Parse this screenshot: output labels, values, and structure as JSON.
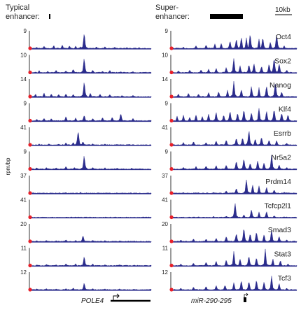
{
  "chart_data": {
    "type": "area",
    "panels": [
      {
        "title_lines": [
          "Typical",
          "enhancer:"
        ],
        "gene": "POLE4"
      },
      {
        "title_lines": [
          "Super-",
          "enhancer:"
        ],
        "gene": "miR-290-295"
      }
    ],
    "scale_bar_label": "10kb",
    "ylabel": "rpm/bp",
    "tracks": [
      {
        "name": "Oct4",
        "scales": [
          "9",
          "9"
        ],
        "left_peaks": [
          [
            0.06,
            0.12
          ],
          [
            0.12,
            0.18
          ],
          [
            0.2,
            0.22
          ],
          [
            0.27,
            0.25
          ],
          [
            0.33,
            0.2
          ],
          [
            0.38,
            0.18
          ],
          [
            0.42,
            0.15
          ],
          [
            0.45,
            0.95
          ],
          [
            0.55,
            0.15
          ],
          [
            0.62,
            0.15
          ],
          [
            0.7,
            0.12
          ],
          [
            0.8,
            0.1
          ],
          [
            0.9,
            0.1
          ]
        ],
        "right_peaks": [
          [
            0.1,
            0.12
          ],
          [
            0.2,
            0.2
          ],
          [
            0.28,
            0.25
          ],
          [
            0.35,
            0.3
          ],
          [
            0.4,
            0.35
          ],
          [
            0.47,
            0.5
          ],
          [
            0.52,
            0.6
          ],
          [
            0.56,
            0.7
          ],
          [
            0.6,
            0.65
          ],
          [
            0.63,
            0.9
          ],
          [
            0.7,
            0.55
          ],
          [
            0.73,
            0.7
          ],
          [
            0.79,
            0.45
          ],
          [
            0.84,
            0.95
          ],
          [
            0.9,
            0.2
          ]
        ]
      },
      {
        "name": "Sox2",
        "scales": [
          "10",
          "10"
        ],
        "left_peaks": [
          [
            0.08,
            0.15
          ],
          [
            0.15,
            0.12
          ],
          [
            0.22,
            0.18
          ],
          [
            0.3,
            0.15
          ],
          [
            0.36,
            0.25
          ],
          [
            0.45,
            0.9
          ],
          [
            0.52,
            0.2
          ],
          [
            0.6,
            0.12
          ],
          [
            0.66,
            0.18
          ],
          [
            0.75,
            0.1
          ],
          [
            0.85,
            0.1
          ]
        ],
        "right_peaks": [
          [
            0.06,
            0.15
          ],
          [
            0.15,
            0.18
          ],
          [
            0.24,
            0.2
          ],
          [
            0.3,
            0.25
          ],
          [
            0.36,
            0.3
          ],
          [
            0.44,
            0.35
          ],
          [
            0.5,
            0.9
          ],
          [
            0.55,
            0.45
          ],
          [
            0.62,
            0.55
          ],
          [
            0.66,
            0.6
          ],
          [
            0.72,
            0.45
          ],
          [
            0.78,
            0.55
          ],
          [
            0.82,
            0.95
          ],
          [
            0.86,
            0.6
          ],
          [
            0.92,
            0.2
          ]
        ]
      },
      {
        "name": "Nanog",
        "scales": [
          "14",
          "14"
        ],
        "left_peaks": [
          [
            0.05,
            0.2
          ],
          [
            0.12,
            0.25
          ],
          [
            0.18,
            0.2
          ],
          [
            0.24,
            0.18
          ],
          [
            0.3,
            0.22
          ],
          [
            0.36,
            0.18
          ],
          [
            0.45,
            0.92
          ],
          [
            0.5,
            0.25
          ],
          [
            0.58,
            0.2
          ],
          [
            0.66,
            0.18
          ],
          [
            0.76,
            0.12
          ],
          [
            0.85,
            0.12
          ]
        ],
        "right_peaks": [
          [
            0.06,
            0.2
          ],
          [
            0.14,
            0.25
          ],
          [
            0.22,
            0.2
          ],
          [
            0.3,
            0.3
          ],
          [
            0.38,
            0.35
          ],
          [
            0.45,
            0.4
          ],
          [
            0.5,
            0.95
          ],
          [
            0.56,
            0.5
          ],
          [
            0.64,
            0.65
          ],
          [
            0.7,
            0.55
          ],
          [
            0.76,
            0.7
          ],
          [
            0.83,
            0.92
          ],
          [
            0.88,
            0.35
          ]
        ]
      },
      {
        "name": "Klf4",
        "scales": [
          "9",
          "9"
        ],
        "left_peaks": [
          [
            0.06,
            0.15
          ],
          [
            0.12,
            0.2
          ],
          [
            0.18,
            0.18
          ],
          [
            0.3,
            0.3
          ],
          [
            0.38,
            0.22
          ],
          [
            0.45,
            0.4
          ],
          [
            0.52,
            0.2
          ],
          [
            0.6,
            0.25
          ],
          [
            0.68,
            0.25
          ],
          [
            0.75,
            0.5
          ],
          [
            0.85,
            0.2
          ]
        ],
        "right_peaks": [
          [
            0.05,
            0.3
          ],
          [
            0.1,
            0.35
          ],
          [
            0.15,
            0.25
          ],
          [
            0.2,
            0.4
          ],
          [
            0.25,
            0.3
          ],
          [
            0.3,
            0.45
          ],
          [
            0.36,
            0.55
          ],
          [
            0.42,
            0.4
          ],
          [
            0.47,
            0.65
          ],
          [
            0.53,
            0.5
          ],
          [
            0.58,
            0.7
          ],
          [
            0.64,
            0.55
          ],
          [
            0.7,
            0.8
          ],
          [
            0.76,
            0.6
          ],
          [
            0.82,
            0.75
          ],
          [
            0.88,
            0.55
          ],
          [
            0.93,
            0.4
          ]
        ]
      },
      {
        "name": "Esrrb",
        "scales": [
          "41",
          "41"
        ],
        "left_peaks": [
          [
            0.08,
            0.1
          ],
          [
            0.16,
            0.12
          ],
          [
            0.24,
            0.1
          ],
          [
            0.3,
            0.18
          ],
          [
            0.36,
            0.2
          ],
          [
            0.4,
            0.95
          ],
          [
            0.44,
            0.25
          ],
          [
            0.52,
            0.12
          ],
          [
            0.62,
            0.1
          ],
          [
            0.72,
            0.08
          ],
          [
            0.82,
            0.08
          ]
        ],
        "right_peaks": [
          [
            0.1,
            0.2
          ],
          [
            0.18,
            0.25
          ],
          [
            0.28,
            0.2
          ],
          [
            0.36,
            0.3
          ],
          [
            0.44,
            0.35
          ],
          [
            0.52,
            0.45
          ],
          [
            0.57,
            0.5
          ],
          [
            0.62,
            0.95
          ],
          [
            0.67,
            0.4
          ],
          [
            0.72,
            0.55
          ],
          [
            0.78,
            0.35
          ],
          [
            0.84,
            0.3
          ],
          [
            0.92,
            0.15
          ]
        ]
      },
      {
        "name": "Nr5a2",
        "scales": [
          "9",
          "9"
        ],
        "left_peaks": [
          [
            0.06,
            0.12
          ],
          [
            0.14,
            0.15
          ],
          [
            0.22,
            0.12
          ],
          [
            0.3,
            0.2
          ],
          [
            0.37,
            0.15
          ],
          [
            0.45,
            0.85
          ],
          [
            0.52,
            0.15
          ],
          [
            0.62,
            0.12
          ],
          [
            0.72,
            0.1
          ],
          [
            0.84,
            0.1
          ]
        ],
        "right_peaks": [
          [
            0.1,
            0.15
          ],
          [
            0.2,
            0.2
          ],
          [
            0.28,
            0.25
          ],
          [
            0.36,
            0.25
          ],
          [
            0.44,
            0.3
          ],
          [
            0.52,
            0.5
          ],
          [
            0.58,
            0.7
          ],
          [
            0.63,
            0.4
          ],
          [
            0.69,
            0.55
          ],
          [
            0.74,
            0.45
          ],
          [
            0.8,
            0.95
          ],
          [
            0.86,
            0.3
          ],
          [
            0.92,
            0.15
          ]
        ]
      },
      {
        "name": "Prdm14",
        "scales": [
          "37",
          "37"
        ],
        "left_peaks": [
          [
            0.08,
            0.06
          ],
          [
            0.18,
            0.06
          ],
          [
            0.3,
            0.08
          ],
          [
            0.42,
            0.1
          ],
          [
            0.52,
            0.06
          ],
          [
            0.64,
            0.06
          ],
          [
            0.78,
            0.05
          ],
          [
            0.88,
            0.05
          ]
        ],
        "right_peaks": [
          [
            0.1,
            0.08
          ],
          [
            0.22,
            0.08
          ],
          [
            0.34,
            0.1
          ],
          [
            0.44,
            0.2
          ],
          [
            0.52,
            0.35
          ],
          [
            0.6,
            0.9
          ],
          [
            0.65,
            0.55
          ],
          [
            0.7,
            0.45
          ],
          [
            0.76,
            0.4
          ],
          [
            0.82,
            0.25
          ],
          [
            0.9,
            0.1
          ]
        ]
      },
      {
        "name": "Tcfcp2l1",
        "scales": [
          "41",
          "41"
        ],
        "left_peaks": [
          [
            0.1,
            0.04
          ],
          [
            0.25,
            0.05
          ],
          [
            0.4,
            0.06
          ],
          [
            0.55,
            0.04
          ],
          [
            0.7,
            0.04
          ],
          [
            0.85,
            0.04
          ]
        ],
        "right_peaks": [
          [
            0.1,
            0.06
          ],
          [
            0.22,
            0.08
          ],
          [
            0.34,
            0.1
          ],
          [
            0.44,
            0.12
          ],
          [
            0.51,
            0.95
          ],
          [
            0.58,
            0.2
          ],
          [
            0.64,
            0.55
          ],
          [
            0.7,
            0.35
          ],
          [
            0.76,
            0.4
          ],
          [
            0.82,
            0.15
          ],
          [
            0.9,
            0.08
          ]
        ]
      },
      {
        "name": "Smad3",
        "scales": [
          "20",
          "20"
        ],
        "left_peaks": [
          [
            0.06,
            0.1
          ],
          [
            0.14,
            0.12
          ],
          [
            0.22,
            0.1
          ],
          [
            0.3,
            0.15
          ],
          [
            0.38,
            0.12
          ],
          [
            0.44,
            0.4
          ],
          [
            0.52,
            0.12
          ],
          [
            0.62,
            0.1
          ],
          [
            0.74,
            0.08
          ],
          [
            0.86,
            0.08
          ]
        ],
        "right_peaks": [
          [
            0.08,
            0.15
          ],
          [
            0.18,
            0.2
          ],
          [
            0.28,
            0.2
          ],
          [
            0.36,
            0.25
          ],
          [
            0.44,
            0.35
          ],
          [
            0.52,
            0.55
          ],
          [
            0.58,
            0.85
          ],
          [
            0.63,
            0.5
          ],
          [
            0.68,
            0.65
          ],
          [
            0.74,
            0.45
          ],
          [
            0.8,
            0.75
          ],
          [
            0.86,
            0.35
          ],
          [
            0.92,
            0.15
          ]
        ]
      },
      {
        "name": "Stat3",
        "scales": [
          "11",
          "11"
        ],
        "left_peaks": [
          [
            0.06,
            0.1
          ],
          [
            0.14,
            0.12
          ],
          [
            0.22,
            0.1
          ],
          [
            0.3,
            0.15
          ],
          [
            0.38,
            0.15
          ],
          [
            0.45,
            0.6
          ],
          [
            0.52,
            0.15
          ],
          [
            0.62,
            0.1
          ],
          [
            0.74,
            0.1
          ],
          [
            0.86,
            0.08
          ]
        ],
        "right_peaks": [
          [
            0.08,
            0.15
          ],
          [
            0.18,
            0.2
          ],
          [
            0.28,
            0.25
          ],
          [
            0.36,
            0.3
          ],
          [
            0.44,
            0.4
          ],
          [
            0.5,
            0.85
          ],
          [
            0.55,
            0.45
          ],
          [
            0.62,
            0.65
          ],
          [
            0.68,
            0.55
          ],
          [
            0.75,
            0.95
          ],
          [
            0.81,
            0.45
          ],
          [
            0.87,
            0.35
          ],
          [
            0.93,
            0.15
          ]
        ]
      },
      {
        "name": "Tcf3",
        "scales": [
          "12",
          "12"
        ],
        "left_peaks": [
          [
            0.06,
            0.1
          ],
          [
            0.14,
            0.12
          ],
          [
            0.22,
            0.1
          ],
          [
            0.3,
            0.12
          ],
          [
            0.36,
            0.15
          ],
          [
            0.45,
            0.45
          ],
          [
            0.52,
            0.12
          ],
          [
            0.62,
            0.1
          ],
          [
            0.74,
            0.1
          ],
          [
            0.86,
            0.08
          ]
        ],
        "right_peaks": [
          [
            0.08,
            0.15
          ],
          [
            0.18,
            0.2
          ],
          [
            0.28,
            0.25
          ],
          [
            0.36,
            0.3
          ],
          [
            0.43,
            0.35
          ],
          [
            0.5,
            0.45
          ],
          [
            0.56,
            0.6
          ],
          [
            0.62,
            0.55
          ],
          [
            0.68,
            0.65
          ],
          [
            0.74,
            0.5
          ],
          [
            0.8,
            0.85
          ],
          [
            0.86,
            0.4
          ],
          [
            0.92,
            0.15
          ]
        ]
      }
    ]
  }
}
